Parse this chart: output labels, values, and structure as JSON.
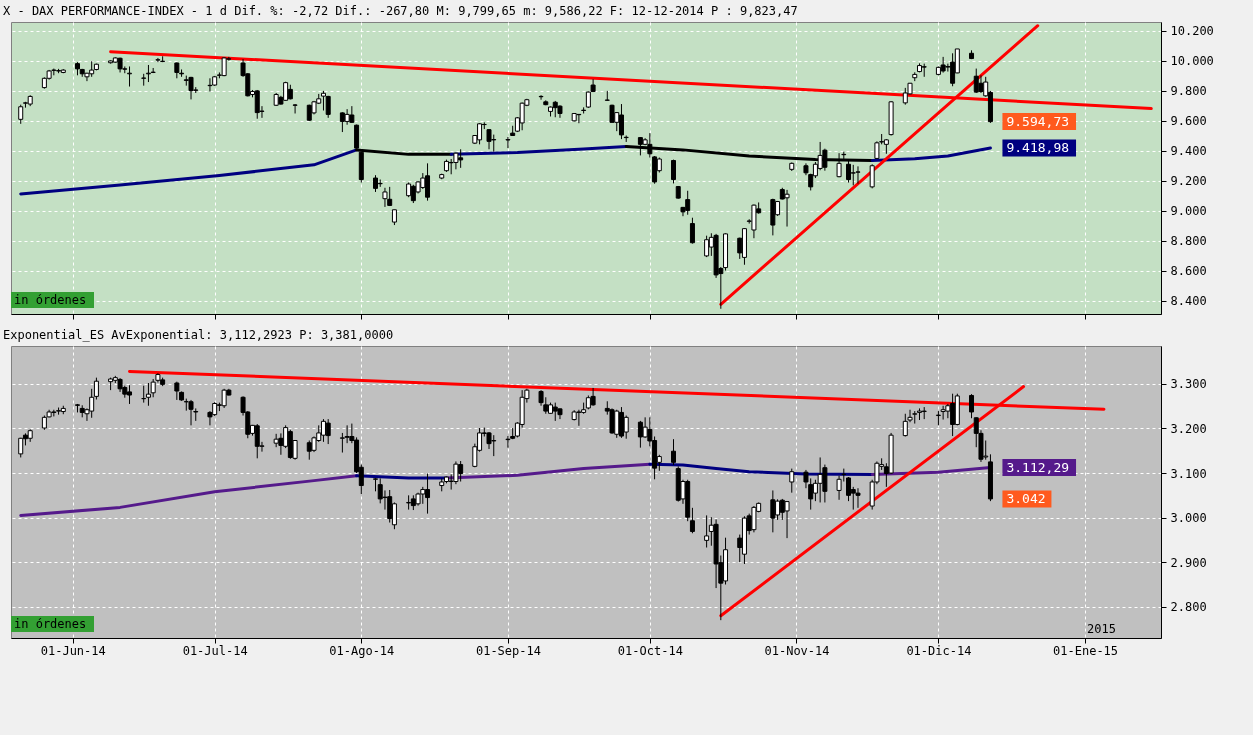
{
  "chart_data": [
    {
      "type": "candlestick",
      "title": "X - DAX PERFORMANCE-INDEX -  1 d Dif. %: -2,72 Dif.: -267,80 M: 9,799,65 m: 9,586,22 F: 12-12-2014 P : 9,823,47",
      "x": [
        "2014-05-21",
        "2014-05-22",
        "2014-05-23",
        "2014-05-26",
        "2014-05-27",
        "2014-05-28",
        "2014-05-29",
        "2014-05-30",
        "2014-06-02",
        "2014-06-03",
        "2014-06-04",
        "2014-06-05",
        "2014-06-06",
        "2014-06-09",
        "2014-06-10",
        "2014-06-11",
        "2014-06-12",
        "2014-06-13",
        "2014-06-16",
        "2014-06-17",
        "2014-06-18",
        "2014-06-19",
        "2014-06-20",
        "2014-06-23",
        "2014-06-24",
        "2014-06-25",
        "2014-06-26",
        "2014-06-27",
        "2014-06-30",
        "2014-07-01",
        "2014-07-02",
        "2014-07-03",
        "2014-07-04",
        "2014-07-07",
        "2014-07-08",
        "2014-07-09",
        "2014-07-10",
        "2014-07-11",
        "2014-07-14",
        "2014-07-15",
        "2014-07-16",
        "2014-07-17",
        "2014-07-18",
        "2014-07-21",
        "2014-07-22",
        "2014-07-23",
        "2014-07-24",
        "2014-07-25",
        "2014-07-28",
        "2014-07-29",
        "2014-07-30",
        "2014-07-31",
        "2014-08-01",
        "2014-08-04",
        "2014-08-05",
        "2014-08-06",
        "2014-08-07",
        "2014-08-08",
        "2014-08-11",
        "2014-08-12",
        "2014-08-13",
        "2014-08-14",
        "2014-08-15",
        "2014-08-18",
        "2014-08-19",
        "2014-08-20",
        "2014-08-21",
        "2014-08-22",
        "2014-08-25",
        "2014-08-26",
        "2014-08-27",
        "2014-08-28",
        "2014-08-29",
        "2014-09-01",
        "2014-09-02",
        "2014-09-03",
        "2014-09-04",
        "2014-09-05",
        "2014-09-08",
        "2014-09-09",
        "2014-09-10",
        "2014-09-11",
        "2014-09-12",
        "2014-09-15",
        "2014-09-16",
        "2014-09-17",
        "2014-09-18",
        "2014-09-19",
        "2014-09-22",
        "2014-09-23",
        "2014-09-24",
        "2014-09-25",
        "2014-09-26",
        "2014-09-29",
        "2014-09-30",
        "2014-10-01",
        "2014-10-02",
        "2014-10-03",
        "2014-10-06",
        "2014-10-07",
        "2014-10-08",
        "2014-10-09",
        "2014-10-10",
        "2014-10-13",
        "2014-10-14",
        "2014-10-15",
        "2014-10-16",
        "2014-10-17",
        "2014-10-20",
        "2014-10-21",
        "2014-10-22",
        "2014-10-23",
        "2014-10-24",
        "2014-10-27",
        "2014-10-28",
        "2014-10-29",
        "2014-10-30",
        "2014-10-31",
        "2014-11-03",
        "2014-11-04",
        "2014-11-05",
        "2014-11-06",
        "2014-11-07",
        "2014-11-10",
        "2014-11-11",
        "2014-11-12",
        "2014-11-13",
        "2014-11-14",
        "2014-11-17",
        "2014-11-18",
        "2014-11-19",
        "2014-11-20",
        "2014-11-21",
        "2014-11-24",
        "2014-11-25",
        "2014-11-26",
        "2014-11-27",
        "2014-11-28",
        "2014-12-01",
        "2014-12-02",
        "2014-12-03",
        "2014-12-04",
        "2014-12-05",
        "2014-12-08",
        "2014-12-09",
        "2014-12-10",
        "2014-12-11",
        "2014-12-12"
      ],
      "ohlc": [
        [
          9610,
          9708,
          9580,
          9694
        ],
        [
          9718,
          9727,
          9688,
          9720
        ],
        [
          9712,
          9771,
          9698,
          9763
        ],
        [
          9822,
          9890,
          9815,
          9884
        ],
        [
          9884,
          9940,
          9875,
          9933
        ],
        [
          9937,
          9949,
          9904,
          9939
        ],
        [
          9935,
          9947,
          9918,
          9933
        ],
        [
          9923,
          9945,
          9918,
          9939
        ],
        [
          9982,
          9992,
          9904,
          9947
        ],
        [
          9943,
          9947,
          9894,
          9914
        ],
        [
          9894,
          9920,
          9865,
          9918
        ],
        [
          9914,
          9998,
          9894,
          9939
        ],
        [
          9943,
          9982,
          9937,
          9978
        ],
        [
          9988,
          10004,
          9982,
          10000
        ],
        [
          9992,
          10024,
          9988,
          10020
        ],
        [
          10018,
          10022,
          9923,
          9947
        ],
        [
          9947,
          9963,
          9918,
          9945
        ],
        [
          9914,
          9963,
          9829,
          9918
        ],
        [
          9884,
          9914,
          9835,
          9886
        ],
        [
          9914,
          9973,
          9859,
          9918
        ],
        [
          9923,
          9953,
          9919,
          9925
        ],
        [
          10006,
          10020,
          9992,
          10008
        ],
        [
          9996,
          10031,
          9992,
          9998
        ],
        [
          9986,
          9990,
          9884,
          9923
        ],
        [
          9918,
          9943,
          9894,
          9914
        ],
        [
          9874,
          9902,
          9835,
          9870
        ],
        [
          9890,
          9894,
          9743,
          9802
        ],
        [
          9806,
          9825,
          9786,
          9804
        ],
        [
          9835,
          9884,
          9796,
          9837
        ],
        [
          9839,
          9900,
          9833,
          9894
        ],
        [
          9904,
          9923,
          9884,
          9906
        ],
        [
          9902,
          10024,
          9898,
          10020
        ],
        [
          10012,
          10027,
          10002,
          10014
        ],
        [
          9986,
          10012,
          9894,
          9902
        ],
        [
          9914,
          9918,
          9763,
          9767
        ],
        [
          9776,
          9806,
          9757,
          9796
        ],
        [
          9800,
          9806,
          9614,
          9655
        ],
        [
          9665,
          9698,
          9620,
          9663
        ],
        [
          9704,
          9786,
          9700,
          9776
        ],
        [
          9757,
          9767,
          9708,
          9712
        ],
        [
          9737,
          9861,
          9733,
          9855
        ],
        [
          9810,
          9841,
          9743,
          9747
        ],
        [
          9706,
          9712,
          9649,
          9704
        ],
        [
          9704,
          9708,
          9600,
          9604
        ],
        [
          9653,
          9733,
          9643,
          9727
        ],
        [
          9718,
          9780,
          9712,
          9747
        ],
        [
          9765,
          9800,
          9669,
          9784
        ],
        [
          9763,
          9767,
          9620,
          9643
        ],
        [
          9653,
          9657,
          9525,
          9596
        ],
        [
          9596,
          9678,
          9574,
          9643
        ],
        [
          9639,
          9698,
          9586,
          9590
        ],
        [
          9571,
          9575,
          9415,
          9418
        ],
        [
          9390,
          9394,
          9188,
          9208
        ],
        [
          9218,
          9237,
          9125,
          9149
        ],
        [
          9180,
          9208,
          9159,
          9182
        ],
        [
          9080,
          9153,
          9025,
          9125
        ],
        [
          9076,
          9159,
          9031,
          9035
        ],
        [
          8924,
          9006,
          8904,
          9006
        ],
        [
          9100,
          9188,
          9090,
          9178
        ],
        [
          9163,
          9173,
          9051,
          9067
        ],
        [
          9125,
          9196,
          9115,
          9192
        ],
        [
          9155,
          9251,
          9145,
          9218
        ],
        [
          9233,
          9316,
          9067,
          9090
        ],
        [
          9218,
          9247,
          9210,
          9241
        ],
        [
          9267,
          9341,
          9259,
          9329
        ],
        [
          9320,
          9345,
          9243,
          9322
        ],
        [
          9322,
          9388,
          9276,
          9384
        ],
        [
          9353,
          9410,
          9286,
          9339
        ],
        [
          9451,
          9502,
          9445,
          9502
        ],
        [
          9473,
          9584,
          9443,
          9580
        ],
        [
          9576,
          9590,
          9545,
          9575
        ],
        [
          9541,
          9545,
          9410,
          9463
        ],
        [
          9475,
          9508,
          9394,
          9473
        ],
        [
          9472,
          9492,
          9418,
          9475
        ],
        [
          9518,
          9567,
          9500,
          9502
        ],
        [
          9531,
          9625,
          9525,
          9620
        ],
        [
          9586,
          9722,
          9537,
          9718
        ],
        [
          9704,
          9747,
          9698,
          9741
        ],
        [
          9763,
          9771,
          9741,
          9761
        ],
        [
          9727,
          9737,
          9704,
          9708
        ],
        [
          9663,
          9696,
          9629,
          9692
        ],
        [
          9724,
          9733,
          9624,
          9688
        ],
        [
          9698,
          9704,
          9620,
          9649
        ],
        [
          9600,
          9651,
          9596,
          9649
        ],
        [
          9643,
          9645,
          9584,
          9641
        ],
        [
          9671,
          9690,
          9649,
          9669
        ],
        [
          9692,
          9796,
          9686,
          9792
        ],
        [
          9839,
          9878,
          9792,
          9796
        ],
        [
          9737,
          9800,
          9733,
          9739
        ],
        [
          9704,
          9708,
          9588,
          9590
        ],
        [
          9590,
          9657,
          9531,
          9655
        ],
        [
          9639,
          9712,
          9478,
          9506
        ],
        [
          9490,
          9502,
          9459,
          9488
        ],
        [
          9488,
          9492,
          9369,
          9443
        ],
        [
          9443,
          9484,
          9437,
          9473
        ],
        [
          9443,
          9518,
          9355,
          9380
        ],
        [
          9359,
          9365,
          9180,
          9192
        ],
        [
          9267,
          9355,
          9255,
          9345
        ],
        [
          9335,
          9341,
          9182,
          9208
        ],
        [
          9161,
          9165,
          9080,
          9084
        ],
        [
          9022,
          9025,
          8963,
          8992
        ],
        [
          9074,
          9133,
          8973,
          9002
        ],
        [
          8914,
          8953,
          8780,
          8786
        ],
        [
          8698,
          8833,
          8690,
          8806
        ],
        [
          8757,
          8849,
          8698,
          8822
        ],
        [
          8835,
          8845,
          8551,
          8571
        ],
        [
          8614,
          8624,
          8345,
          8580
        ],
        [
          8620,
          8849,
          8600,
          8845
        ],
        [
          8816,
          8820,
          8678,
          8718
        ],
        [
          8688,
          8884,
          8639,
          8880
        ],
        [
          8929,
          8943,
          8914,
          8931
        ],
        [
          8871,
          9041,
          8816,
          9037
        ],
        [
          9012,
          9055,
          8980,
          8986
        ],
        [
          9074,
          9080,
          8835,
          8904
        ],
        [
          8973,
          9065,
          8965,
          9061
        ],
        [
          9141,
          9153,
          9075,
          9078
        ],
        [
          9086,
          9139,
          8894,
          9110
        ],
        [
          9276,
          9322,
          9265,
          9316
        ],
        [
          9300,
          9316,
          9237,
          9253
        ],
        [
          9241,
          9247,
          9135,
          9159
        ],
        [
          9233,
          9325,
          9218,
          9310
        ],
        [
          9282,
          9459,
          9270,
          9369
        ],
        [
          9404,
          9414,
          9267,
          9290
        ],
        [
          9227,
          9384,
          9223,
          9316
        ],
        [
          9376,
          9394,
          9345,
          9374
        ],
        [
          9310,
          9345,
          9188,
          9208
        ],
        [
          9251,
          9306,
          9169,
          9253
        ],
        [
          9257,
          9296,
          9180,
          9259
        ],
        [
          9159,
          9310,
          9149,
          9300
        ],
        [
          9349,
          9463,
          9345,
          9453
        ],
        [
          9459,
          9512,
          9443,
          9461
        ],
        [
          9443,
          9478,
          9380,
          9473
        ],
        [
          9508,
          9731,
          9502,
          9727
        ],
        [
          9720,
          9820,
          9708,
          9786
        ],
        [
          9780,
          9853,
          9776,
          9851
        ],
        [
          9888,
          9924,
          9865,
          9910
        ],
        [
          9929,
          9984,
          9924,
          9969
        ],
        [
          9961,
          9982,
          9894,
          9959
        ],
        [
          9910,
          9963,
          9904,
          9957
        ],
        [
          9973,
          10027,
          9922,
          9933
        ],
        [
          9963,
          9982,
          9929,
          9959
        ],
        [
          9992,
          10051,
          9831,
          9851
        ],
        [
          9920,
          10080,
          9918,
          10080
        ],
        [
          10051,
          10071,
          10012,
          10016
        ],
        [
          9898,
          9949,
          9786,
          9792
        ],
        [
          9851,
          9904,
          9786,
          9796
        ],
        [
          9767,
          9894,
          9761,
          9859
        ],
        [
          9790,
          9799.65,
          9586.22,
          9594.73
        ]
      ],
      "series": [
        {
          "type": "line",
          "color": "#000080",
          "x": [
            "2014-05-21",
            "2014-06-11",
            "2014-07-02",
            "2014-07-22",
            "2014-07-31"
          ],
          "values": [
            9112,
            9171,
            9235,
            9306,
            9406
          ]
        },
        {
          "type": "line",
          "color": "#000000",
          "x": [
            "2014-07-31",
            "2014-08-11",
            "2014-08-20"
          ],
          "values": [
            9406,
            9376,
            9376
          ]
        },
        {
          "type": "line",
          "color": "#000080",
          "x": [
            "2014-08-20",
            "2014-09-03",
            "2014-09-17",
            "2014-09-26"
          ],
          "values": [
            9376,
            9388,
            9412,
            9429
          ]
        },
        {
          "type": "line",
          "color": "#000000",
          "x": [
            "2014-09-26",
            "2014-10-08",
            "2014-10-22",
            "2014-11-05",
            "2014-11-17"
          ],
          "values": [
            9429,
            9406,
            9365,
            9341,
            9335
          ]
        },
        {
          "type": "line",
          "color": "#000080",
          "x": [
            "2014-11-17",
            "2014-11-26",
            "2014-12-03",
            "2014-12-12"
          ],
          "values": [
            9335,
            9347,
            9365,
            9418.98
          ]
        },
        {
          "type": "line",
          "color": "#ff0000",
          "x": [
            "2014-06-09",
            "2015-01-15"
          ],
          "values": [
            10061,
            9682
          ]
        },
        {
          "type": "line",
          "color": "#ff0000",
          "x": [
            "2014-10-16",
            "2014-12-22"
          ],
          "values": [
            8375,
            10235
          ]
        }
      ],
      "xlim": [
        "2014-05-20",
        "2015-01-16"
      ],
      "xticks": [
        {
          "value": "2014-06-01",
          "label": null
        },
        {
          "value": "2014-07-01",
          "label": null
        },
        {
          "value": "2014-08-01",
          "label": null
        },
        {
          "value": "2014-09-01",
          "label": null
        },
        {
          "value": "2014-10-01",
          "label": null
        },
        {
          "value": "2014-11-01",
          "label": null
        },
        {
          "value": "2014-12-01",
          "label": null
        },
        {
          "value": "2015-01-01",
          "label": null
        }
      ],
      "ylim": [
        8310,
        10260
      ],
      "yticks": [
        {
          "value": 8400,
          "label": "8.400"
        },
        {
          "value": 8600,
          "label": "8.600"
        },
        {
          "value": 8800,
          "label": "8.800"
        },
        {
          "value": 9000,
          "label": "9.000"
        },
        {
          "value": 9200,
          "label": "9.200"
        },
        {
          "value": 9400,
          "label": "9.400"
        },
        {
          "value": 9600,
          "label": "9.600"
        },
        {
          "value": 9800,
          "label": "9.800"
        },
        {
          "value": 10000,
          "label": "10.000"
        },
        {
          "value": 10200,
          "label": "10.200"
        }
      ],
      "grid": true,
      "tick_labels": "y",
      "annotations": [
        {
          "text": "9.594,73",
          "x": "2014-12-12",
          "y": 9594.73
        },
        {
          "text": "9.418,98",
          "x": "2014-12-12",
          "y": 9418.98
        },
        "in órdenes"
      ]
    },
    {
      "type": "candlestick",
      "title": "Exponential_ES AvExponential: 3,112,2923 P: 3,381,0000",
      "x": [
        "2014-05-21",
        "2014-05-22",
        "2014-05-23",
        "2014-05-26",
        "2014-05-27",
        "2014-05-28",
        "2014-05-29",
        "2014-05-30",
        "2014-06-02",
        "2014-06-03",
        "2014-06-04",
        "2014-06-05",
        "2014-06-06",
        "2014-06-09",
        "2014-06-10",
        "2014-06-11",
        "2014-06-12",
        "2014-06-13",
        "2014-06-16",
        "2014-06-17",
        "2014-06-18",
        "2014-06-19",
        "2014-06-20",
        "2014-06-23",
        "2014-06-24",
        "2014-06-25",
        "2014-06-26",
        "2014-06-27",
        "2014-06-30",
        "2014-07-01",
        "2014-07-02",
        "2014-07-03",
        "2014-07-04",
        "2014-07-07",
        "2014-07-08",
        "2014-07-09",
        "2014-07-10",
        "2014-07-11",
        "2014-07-14",
        "2014-07-15",
        "2014-07-16",
        "2014-07-17",
        "2014-07-18",
        "2014-07-21",
        "2014-07-22",
        "2014-07-23",
        "2014-07-24",
        "2014-07-25",
        "2014-07-28",
        "2014-07-29",
        "2014-07-30",
        "2014-07-31",
        "2014-08-01",
        "2014-08-04",
        "2014-08-05",
        "2014-08-06",
        "2014-08-07",
        "2014-08-08",
        "2014-08-11",
        "2014-08-12",
        "2014-08-13",
        "2014-08-14",
        "2014-08-15",
        "2014-08-18",
        "2014-08-19",
        "2014-08-20",
        "2014-08-21",
        "2014-08-22",
        "2014-08-25",
        "2014-08-26",
        "2014-08-27",
        "2014-08-28",
        "2014-08-29",
        "2014-09-01",
        "2014-09-02",
        "2014-09-03",
        "2014-09-04",
        "2014-09-05",
        "2014-09-08",
        "2014-09-09",
        "2014-09-10",
        "2014-09-11",
        "2014-09-12",
        "2014-09-15",
        "2014-09-16",
        "2014-09-17",
        "2014-09-18",
        "2014-09-19",
        "2014-09-22",
        "2014-09-23",
        "2014-09-24",
        "2014-09-25",
        "2014-09-26",
        "2014-09-29",
        "2014-09-30",
        "2014-10-01",
        "2014-10-02",
        "2014-10-03",
        "2014-10-06",
        "2014-10-07",
        "2014-10-08",
        "2014-10-09",
        "2014-10-10",
        "2014-10-13",
        "2014-10-14",
        "2014-10-15",
        "2014-10-16",
        "2014-10-17",
        "2014-10-20",
        "2014-10-21",
        "2014-10-22",
        "2014-10-23",
        "2014-10-24",
        "2014-10-27",
        "2014-10-28",
        "2014-10-29",
        "2014-10-30",
        "2014-10-31",
        "2014-11-03",
        "2014-11-04",
        "2014-11-05",
        "2014-11-06",
        "2014-11-07",
        "2014-11-10",
        "2014-11-11",
        "2014-11-12",
        "2014-11-13",
        "2014-11-14",
        "2014-11-17",
        "2014-11-18",
        "2014-11-19",
        "2014-11-20",
        "2014-11-21",
        "2014-11-24",
        "2014-11-25",
        "2014-11-26",
        "2014-11-27",
        "2014-11-28",
        "2014-12-01",
        "2014-12-02",
        "2014-12-03",
        "2014-12-04",
        "2014-12-05",
        "2014-12-08",
        "2014-12-09",
        "2014-12-10",
        "2014-12-11",
        "2014-12-12"
      ],
      "ohlc": [
        [
          3143,
          3179,
          3135,
          3178
        ],
        [
          3185,
          3189,
          3162,
          3177
        ],
        [
          3178,
          3198,
          3170,
          3195
        ],
        [
          3201,
          3229,
          3197,
          3225
        ],
        [
          3226,
          3242,
          3225,
          3237
        ],
        [
          3237,
          3242,
          3227,
          3236
        ],
        [
          3239,
          3247,
          3231,
          3240
        ],
        [
          3238,
          3251,
          3232,
          3245
        ],
        [
          3253,
          3255,
          3236,
          3252
        ],
        [
          3245,
          3252,
          3225,
          3236
        ],
        [
          3233,
          3245,
          3217,
          3242
        ],
        [
          3239,
          3289,
          3224,
          3270
        ],
        [
          3272,
          3314,
          3265,
          3306
        ],
        [
          3305,
          3314,
          3286,
          3311
        ],
        [
          3308,
          3318,
          3302,
          3314
        ],
        [
          3310,
          3313,
          3282,
          3289
        ],
        [
          3292,
          3296,
          3269,
          3277
        ],
        [
          3282,
          3297,
          3255,
          3275
        ],
        [
          3267,
          3296,
          3258,
          3267
        ],
        [
          3270,
          3302,
          3251,
          3277
        ],
        [
          3280,
          3311,
          3270,
          3304
        ],
        [
          3308,
          3324,
          3303,
          3321
        ],
        [
          3309,
          3314,
          3295,
          3299
        ],
        [
          3302,
          3305,
          3264,
          3284
        ],
        [
          3281,
          3283,
          3262,
          3264
        ],
        [
          3260,
          3267,
          3240,
          3260
        ],
        [
          3260,
          3264,
          3207,
          3243
        ],
        [
          3238,
          3245,
          3217,
          3237
        ],
        [
          3236,
          3239,
          3207,
          3226
        ],
        [
          3231,
          3259,
          3228,
          3256
        ],
        [
          3253,
          3258,
          3239,
          3252
        ],
        [
          3251,
          3289,
          3246,
          3286
        ],
        [
          3286,
          3289,
          3274,
          3275
        ],
        [
          3270,
          3272,
          3229,
          3236
        ],
        [
          3237,
          3239,
          3178,
          3187
        ],
        [
          3189,
          3208,
          3184,
          3207
        ],
        [
          3206,
          3210,
          3133,
          3160
        ],
        [
          3160,
          3170,
          3148,
          3161
        ],
        [
          3167,
          3188,
          3158,
          3176
        ],
        [
          3178,
          3189,
          3141,
          3162
        ],
        [
          3160,
          3207,
          3156,
          3202
        ],
        [
          3193,
          3197,
          3132,
          3135
        ],
        [
          3133,
          3174,
          3130,
          3173
        ],
        [
          3168,
          3173,
          3130,
          3149
        ],
        [
          3151,
          3182,
          3147,
          3179
        ],
        [
          3173,
          3207,
          3170,
          3190
        ],
        [
          3185,
          3221,
          3170,
          3216
        ],
        [
          3212,
          3221,
          3165,
          3184
        ],
        [
          3178,
          3190,
          3146,
          3179
        ],
        [
          3180,
          3207,
          3167,
          3182
        ],
        [
          3182,
          3211,
          3167,
          3173
        ],
        [
          3174,
          3180,
          3100,
          3103
        ],
        [
          3113,
          3119,
          3053,
          3072
        ],
        [
          3086,
          3089,
          3059,
          3087
        ],
        [
          3074,
          3088,
          3032,
          3042
        ],
        [
          3046,
          3061,
          3018,
          3045
        ],
        [
          3047,
          3062,
          2989,
          2998
        ],
        [
          2984,
          3034,
          2974,
          3031
        ],
        [
          3033,
          3050,
          3018,
          3034
        ],
        [
          3042,
          3050,
          3017,
          3027
        ],
        [
          3031,
          3056,
          3027,
          3053
        ],
        [
          3053,
          3069,
          3031,
          3063
        ],
        [
          3063,
          3099,
          3009,
          3045
        ],
        [
          3072,
          3088,
          3059,
          3080
        ],
        [
          3081,
          3092,
          3077,
          3091
        ],
        [
          3081,
          3097,
          3063,
          3082
        ],
        [
          3081,
          3126,
          3075,
          3120
        ],
        [
          3119,
          3127,
          3081,
          3099
        ],
        [
          3115,
          3166,
          3113,
          3159
        ],
        [
          3151,
          3201,
          3148,
          3190
        ],
        [
          3190,
          3202,
          3182,
          3189
        ],
        [
          3190,
          3192,
          3154,
          3166
        ],
        [
          3172,
          3185,
          3138,
          3173
        ],
        [
          3176,
          3183,
          3157,
          3175
        ],
        [
          3182,
          3201,
          3176,
          3178
        ],
        [
          3183,
          3214,
          3180,
          3212
        ],
        [
          3209,
          3286,
          3202,
          3270
        ],
        [
          3267,
          3289,
          3258,
          3286
        ],
        [
          3283,
          3286,
          3251,
          3258
        ],
        [
          3253,
          3270,
          3233,
          3239
        ],
        [
          3234,
          3258,
          3233,
          3253
        ],
        [
          3248,
          3258,
          3217,
          3239
        ],
        [
          3244,
          3245,
          3221,
          3231
        ],
        [
          3220,
          3241,
          3218,
          3237
        ],
        [
          3236,
          3242,
          3206,
          3237
        ],
        [
          3236,
          3258,
          3233,
          3242
        ],
        [
          3246,
          3274,
          3243,
          3269
        ],
        [
          3272,
          3291,
          3251,
          3253
        ],
        [
          3245,
          3261,
          3231,
          3239
        ],
        [
          3242,
          3245,
          3188,
          3190
        ],
        [
          3187,
          3242,
          3179,
          3239
        ],
        [
          3236,
          3248,
          3179,
          3183
        ],
        [
          3192,
          3229,
          3177,
          3225
        ],
        [
          3214,
          3217,
          3157,
          3181
        ],
        [
          3181,
          3225,
          3179,
          3203
        ],
        [
          3198,
          3225,
          3160,
          3172
        ],
        [
          3173,
          3182,
          3086,
          3111
        ],
        [
          3124,
          3141,
          3105,
          3137
        ],
        [
          3149,
          3176,
          3118,
          3124
        ],
        [
          3110,
          3115,
          3036,
          3039
        ],
        [
          3042,
          3085,
          3031,
          3081
        ],
        [
          3081,
          3085,
          2992,
          3001
        ],
        [
          2993,
          3022,
          2965,
          2969
        ],
        [
          2949,
          3005,
          2933,
          2959
        ],
        [
          2969,
          3001,
          2937,
          2983
        ],
        [
          2985,
          2996,
          2842,
          2896
        ],
        [
          2899,
          2915,
          2770,
          2853
        ],
        [
          2858,
          2955,
          2850,
          2928
        ],
        [
          2954,
          2962,
          2900,
          2933
        ],
        [
          2918,
          3003,
          2896,
          2999
        ],
        [
          3004,
          3009,
          2962,
          2971
        ],
        [
          2973,
          3026,
          2967,
          3023
        ],
        [
          3014,
          3034,
          3012,
          3032
        ],
        [
          3040,
          3061,
          2967,
          2999
        ],
        [
          3006,
          3041,
          2995,
          3037
        ],
        [
          3039,
          3042,
          2995,
          3012
        ],
        [
          3015,
          3037,
          2954,
          3036
        ],
        [
          3080,
          3110,
          3056,
          3103
        ],
        [
          3102,
          3107,
          3066,
          3080
        ],
        [
          3074,
          3088,
          3018,
          3042
        ],
        [
          3055,
          3085,
          3037,
          3077
        ],
        [
          3077,
          3135,
          3034,
          3097
        ],
        [
          3112,
          3119,
          3034,
          3059
        ],
        [
          3061,
          3094,
          3040,
          3086
        ],
        [
          3097,
          3110,
          3081,
          3097
        ],
        [
          3089,
          3091,
          3037,
          3050
        ],
        [
          3063,
          3069,
          3018,
          3055
        ],
        [
          3055,
          3066,
          3022,
          3050
        ],
        [
          3026,
          3085,
          3018,
          3080
        ],
        [
          3080,
          3126,
          3075,
          3122
        ],
        [
          3115,
          3133,
          3107,
          3119
        ],
        [
          3114,
          3122,
          3069,
          3099
        ],
        [
          3100,
          3190,
          3098,
          3185
        ],
        [
          3184,
          3233,
          3182,
          3216
        ],
        [
          3219,
          3242,
          3214,
          3225
        ],
        [
          3232,
          3239,
          3211,
          3233
        ],
        [
          3236,
          3245,
          3219,
          3239
        ],
        [
          3238,
          3248,
          3221,
          3239
        ],
        [
          3229,
          3239,
          3207,
          3230
        ],
        [
          3238,
          3251,
          3220,
          3242
        ],
        [
          3239,
          3255,
          3223,
          3251
        ],
        [
          3256,
          3278,
          3183,
          3209
        ],
        [
          3209,
          3278,
          3207,
          3273
        ],
        [
          3274,
          3277,
          3223,
          3237
        ],
        [
          3224,
          3225,
          3158,
          3189
        ],
        [
          3189,
          3196,
          3125,
          3131
        ],
        [
          3136,
          3173,
          3130,
          3138
        ],
        [
          3125,
          3142,
          3037,
          3042
        ]
      ],
      "series": [
        {
          "type": "line",
          "color": "#551a8b",
          "x": [
            "2014-05-21",
            "2014-06-11",
            "2014-07-01",
            "2014-07-22",
            "2014-07-31"
          ],
          "values": [
            3005,
            3023,
            3058,
            3083,
            3094
          ]
        },
        {
          "type": "line",
          "color": "#000080",
          "x": [
            "2014-07-31",
            "2014-08-11",
            "2014-08-19"
          ],
          "values": [
            3094,
            3089,
            3089
          ]
        },
        {
          "type": "line",
          "color": "#551a8b",
          "x": [
            "2014-08-19",
            "2014-09-03",
            "2014-09-17",
            "2014-10-01"
          ],
          "values": [
            3089,
            3095,
            3110,
            3120
          ]
        },
        {
          "type": "line",
          "color": "#000080",
          "x": [
            "2014-10-01",
            "2014-10-08",
            "2014-10-15",
            "2014-10-22",
            "2014-11-03",
            "2014-11-17"
          ],
          "values": [
            3120,
            3118,
            3110,
            3103,
            3098,
            3097
          ]
        },
        {
          "type": "line",
          "color": "#551a8b",
          "x": [
            "2014-11-17",
            "2014-12-01",
            "2014-12-12"
          ],
          "values": [
            3097,
            3102,
            3112.29
          ]
        },
        {
          "type": "line",
          "color": "#ff0000",
          "x": [
            "2014-06-13",
            "2015-01-05"
          ],
          "values": [
            3328,
            3243
          ]
        },
        {
          "type": "line",
          "color": "#ff0000",
          "x": [
            "2014-10-16",
            "2014-12-19"
          ],
          "values": [
            2780,
            3294
          ]
        }
      ],
      "xlim": [
        "2014-05-20",
        "2015-01-16"
      ],
      "xticks": [
        {
          "value": "2014-06-01",
          "label": "01-Jun-14"
        },
        {
          "value": "2014-07-01",
          "label": "01-Jul-14"
        },
        {
          "value": "2014-08-01",
          "label": "01-Ago-14"
        },
        {
          "value": "2014-09-01",
          "label": "01-Sep-14"
        },
        {
          "value": "2014-10-01",
          "label": "01-Oct-14"
        },
        {
          "value": "2014-11-01",
          "label": "01-Nov-14"
        },
        {
          "value": "2014-12-01",
          "label": "01-Dic-14"
        },
        {
          "value": "2015-01-01",
          "label": "01-Ene-15"
        }
      ],
      "ylim": [
        2730,
        3385
      ],
      "yticks": [
        {
          "value": 2800,
          "label": "2.800"
        },
        {
          "value": 2900,
          "label": "2.900"
        },
        {
          "value": 3000,
          "label": "3.000"
        },
        {
          "value": 3100,
          "label": "3.100"
        },
        {
          "value": 3200,
          "label": "3.200"
        },
        {
          "value": 3300,
          "label": "3.300"
        }
      ],
      "grid": true,
      "annotations": [
        {
          "text": "3.112,29",
          "x": "2014-12-12",
          "y": 3112.29
        },
        {
          "text": "3.042",
          "x": "2014-12-12",
          "y": 3042
        },
        "in órdenes",
        "2015"
      ]
    }
  ]
}
